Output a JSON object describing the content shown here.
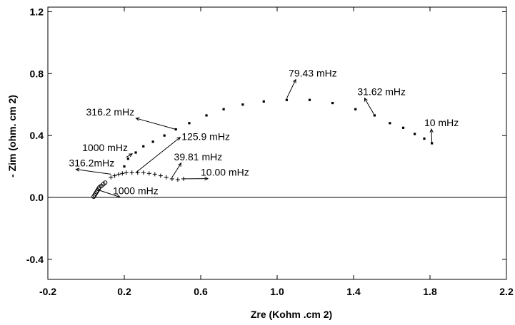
{
  "chart_data": {
    "type": "scatter",
    "title": "",
    "xlabel": "Zre (Kohm .cm 2)",
    "ylabel": "- Zim (ohm. cm 2)",
    "xlim": [
      -0.2,
      2.2
    ],
    "ylim": [
      -0.53,
      1.23
    ],
    "x_ticks": [
      -0.2,
      0.2,
      0.6,
      1.0,
      1.4,
      1.8,
      2.2
    ],
    "x_tick_labels": [
      "-0.2",
      "0.2",
      "0.6",
      "1.0",
      "1.4",
      "1.8",
      "2.2"
    ],
    "y_ticks": [
      -0.4,
      0.0,
      0.4,
      0.8,
      1.2
    ],
    "y_tick_labels": [
      "-0.4",
      "0.0",
      "0.4",
      "0.8",
      "1.2"
    ],
    "zero_line": true,
    "grid": false,
    "series": [
      {
        "marker": "square",
        "x": [
          0.2,
          0.22,
          0.26,
          0.3,
          0.35,
          0.41,
          0.47,
          0.54,
          0.63,
          0.72,
          0.82,
          0.93,
          1.05,
          1.17,
          1.29,
          1.41,
          1.51,
          1.59,
          1.66,
          1.72,
          1.77,
          1.81
        ],
        "y": [
          0.2,
          0.25,
          0.29,
          0.33,
          0.36,
          0.4,
          0.44,
          0.48,
          0.53,
          0.57,
          0.6,
          0.62,
          0.63,
          0.63,
          0.61,
          0.57,
          0.53,
          0.48,
          0.45,
          0.41,
          0.38,
          0.35
        ]
      },
      {
        "marker": "plus",
        "x": [
          0.13,
          0.15,
          0.17,
          0.19,
          0.21,
          0.24,
          0.27,
          0.3,
          0.33,
          0.36,
          0.39,
          0.42,
          0.45,
          0.48,
          0.51
        ],
        "y": [
          0.13,
          0.14,
          0.15,
          0.155,
          0.16,
          0.16,
          0.16,
          0.16,
          0.155,
          0.15,
          0.14,
          0.13,
          0.12,
          0.115,
          0.12
        ]
      },
      {
        "marker": "circle",
        "x": [
          0.04,
          0.045,
          0.05,
          0.055,
          0.06,
          0.065,
          0.07,
          0.08,
          0.09,
          0.1
        ],
        "y": [
          0.005,
          0.015,
          0.025,
          0.035,
          0.045,
          0.055,
          0.065,
          0.075,
          0.085,
          0.095
        ]
      }
    ],
    "annotations": [
      {
        "text": "79.43 mHz",
        "tx": 1.06,
        "ty": 0.78,
        "px": 1.05,
        "py": 0.64
      },
      {
        "text": "31.62 mHz",
        "tx": 1.42,
        "ty": 0.66,
        "px": 1.51,
        "py": 0.53
      },
      {
        "text": "10 mHz",
        "tx": 1.77,
        "ty": 0.46,
        "px": 1.81,
        "py": 0.35
      },
      {
        "text": "316.2 mHz",
        "tx": 0.0,
        "ty": 0.53,
        "px": 0.47,
        "py": 0.44
      },
      {
        "text": "125.9 mHz",
        "tx": 0.5,
        "ty": 0.37,
        "px": 0.26,
        "py": 0.16
      },
      {
        "text": "1000 mHz",
        "tx": -0.02,
        "ty": 0.3,
        "px": 0.21,
        "py": 0.26
      },
      {
        "text": "39.81 mHz",
        "tx": 0.46,
        "ty": 0.24,
        "px": 0.45,
        "py": 0.13
      },
      {
        "text": "316.2mHz",
        "tx": -0.09,
        "ty": 0.2,
        "px": 0.13,
        "py": 0.15
      },
      {
        "text": "10.00 mHz",
        "tx": 0.6,
        "ty": 0.14,
        "px": 0.51,
        "py": 0.12
      },
      {
        "text": "1000 mHz",
        "tx": 0.14,
        "ty": 0.02,
        "px": 0.06,
        "py": 0.05
      }
    ]
  }
}
